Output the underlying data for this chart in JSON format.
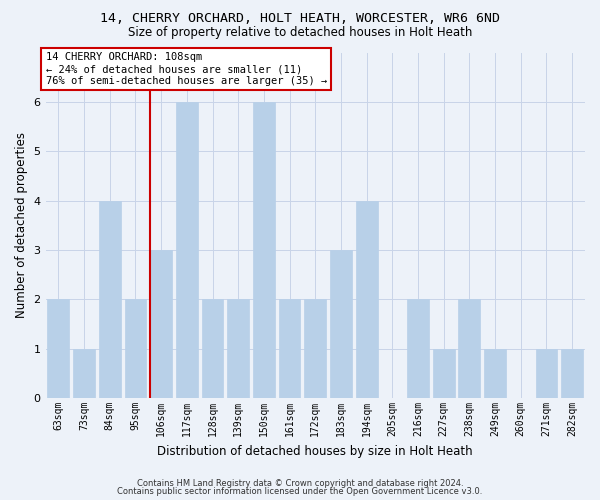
{
  "title1": "14, CHERRY ORCHARD, HOLT HEATH, WORCESTER, WR6 6ND",
  "title2": "Size of property relative to detached houses in Holt Heath",
  "xlabel": "Distribution of detached houses by size in Holt Heath",
  "ylabel": "Number of detached properties",
  "categories": [
    "63sqm",
    "73sqm",
    "84sqm",
    "95sqm",
    "106sqm",
    "117sqm",
    "128sqm",
    "139sqm",
    "150sqm",
    "161sqm",
    "172sqm",
    "183sqm",
    "194sqm",
    "205sqm",
    "216sqm",
    "227sqm",
    "238sqm",
    "249sqm",
    "260sqm",
    "271sqm",
    "282sqm"
  ],
  "values": [
    2,
    1,
    4,
    2,
    3,
    6,
    2,
    2,
    6,
    2,
    2,
    3,
    4,
    0,
    2,
    1,
    2,
    1,
    0,
    1,
    1
  ],
  "bar_color": "#b8d0e8",
  "bar_edge_color": "#b8d0e8",
  "highlight_index": 4,
  "highlight_line_color": "#cc0000",
  "ylim": [
    0,
    7
  ],
  "yticks": [
    0,
    1,
    2,
    3,
    4,
    5,
    6
  ],
  "grid_color": "#c8d4e8",
  "annotation_line1": "14 CHERRY ORCHARD: 108sqm",
  "annotation_line2": "← 24% of detached houses are smaller (11)",
  "annotation_line3": "76% of semi-detached houses are larger (35) →",
  "annotation_box_color": "#ffffff",
  "annotation_box_edge_color": "#cc0000",
  "footer1": "Contains HM Land Registry data © Crown copyright and database right 2024.",
  "footer2": "Contains public sector information licensed under the Open Government Licence v3.0.",
  "bg_color": "#edf2f9",
  "plot_bg_color": "#edf2f9"
}
